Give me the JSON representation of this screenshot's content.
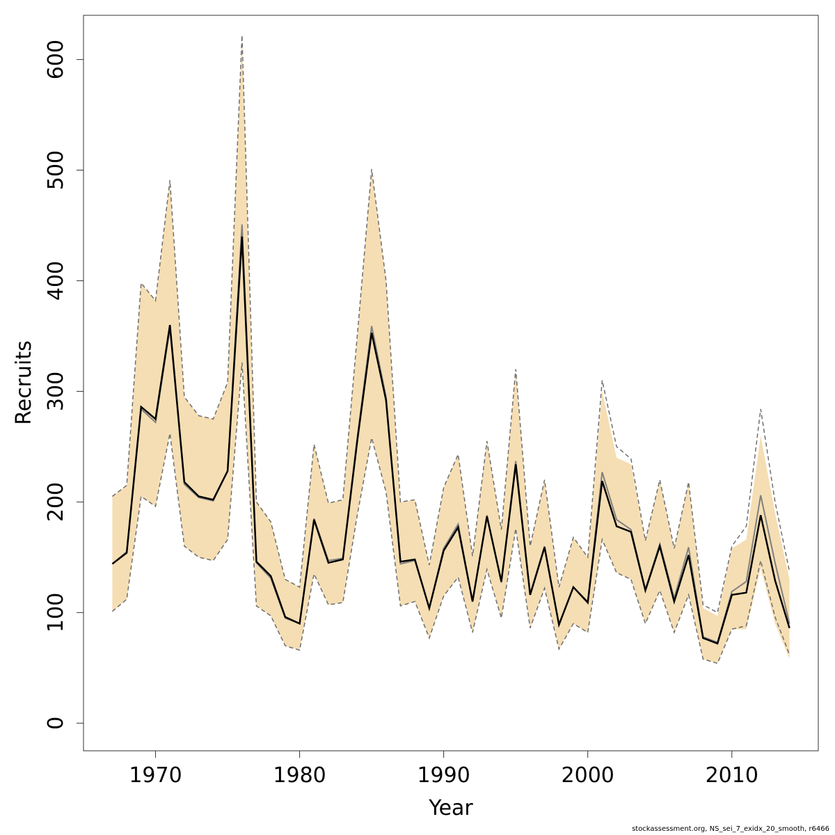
{
  "chart_data": {
    "type": "line",
    "title": "",
    "xlabel": "Year",
    "ylabel": "Recruits",
    "xlim": [
      1965,
      2016
    ],
    "ylim": [
      -25,
      640
    ],
    "x_ticks": [
      1970,
      1980,
      1990,
      2000,
      2010
    ],
    "y_ticks": [
      0,
      100,
      200,
      300,
      400,
      500,
      600
    ],
    "grid": false,
    "legend": "none",
    "colors": {
      "band": "#f5deb3",
      "estimate": "#000000",
      "previous": "#808080",
      "ci_dashed": "#6e6e6e",
      "frame": "#333333"
    },
    "years": [
      1967,
      1968,
      1969,
      1970,
      1971,
      1972,
      1973,
      1974,
      1975,
      1976,
      1977,
      1978,
      1979,
      1980,
      1981,
      1982,
      1983,
      1984,
      1985,
      1986,
      1987,
      1988,
      1989,
      1990,
      1991,
      1992,
      1993,
      1994,
      1995,
      1996,
      1997,
      1998,
      1999,
      2000,
      2001,
      2002,
      2003,
      2004,
      2005,
      2006,
      2007,
      2008,
      2009,
      2010,
      2011,
      2012,
      2013,
      2014
    ],
    "series": [
      {
        "role": "estimate",
        "values": [
          144,
          154,
          286,
          275,
          360,
          218,
          205,
          202,
          228,
          440,
          146,
          133,
          96,
          90,
          184,
          145,
          148,
          255,
          353,
          292,
          146,
          148,
          104,
          156,
          177,
          110,
          187,
          128,
          234,
          116,
          159,
          89,
          123,
          109,
          219,
          178,
          173,
          120,
          160,
          110,
          152,
          77,
          72,
          116,
          118,
          188,
          129,
          86
        ]
      },
      {
        "role": "previous",
        "values": [
          144,
          155,
          284,
          272,
          357,
          216,
          204,
          201,
          228,
          451,
          145,
          131,
          95,
          90,
          185,
          147,
          149,
          258,
          359,
          295,
          144,
          147,
          104,
          158,
          180,
          110,
          188,
          127,
          237,
          117,
          160,
          89,
          123,
          110,
          227,
          184,
          175,
          121,
          162,
          113,
          159,
          78,
          73,
          119,
          128,
          206,
          145,
          90
        ]
      },
      {
        "role": "ci_upper",
        "values": [
          205,
          215,
          398,
          382,
          491,
          295,
          278,
          275,
          308,
          622,
          200,
          182,
          130,
          123,
          252,
          199,
          202,
          350,
          501,
          400,
          200,
          202,
          143,
          213,
          243,
          151,
          255,
          175,
          320,
          160,
          220,
          123,
          168,
          150,
          310,
          250,
          239,
          165,
          220,
          158,
          218,
          107,
          100,
          160,
          178,
          284,
          200,
          137
        ]
      },
      {
        "role": "ci_lower",
        "values": [
          101,
          112,
          205,
          196,
          262,
          160,
          150,
          147,
          166,
          326,
          106,
          97,
          70,
          66,
          135,
          107,
          109,
          188,
          258,
          209,
          106,
          110,
          77,
          115,
          132,
          82,
          139,
          95,
          176,
          86,
          122,
          67,
          90,
          82,
          166,
          136,
          130,
          90,
          120,
          82,
          116,
          58,
          54,
          85,
          88,
          147,
          96,
          62
        ]
      },
      {
        "role": "band_upper",
        "values": [
          205,
          215,
          398,
          382,
          491,
          295,
          278,
          275,
          308,
          622,
          200,
          182,
          130,
          123,
          252,
          199,
          202,
          350,
          501,
          400,
          200,
          202,
          143,
          213,
          243,
          151,
          255,
          175,
          320,
          160,
          220,
          123,
          168,
          150,
          300,
          240,
          234,
          165,
          220,
          158,
          218,
          104,
          97,
          158,
          166,
          260,
          190,
          130
        ]
      },
      {
        "role": "band_lower",
        "values": [
          101,
          112,
          205,
          196,
          262,
          160,
          150,
          147,
          166,
          326,
          106,
          97,
          70,
          66,
          135,
          107,
          109,
          188,
          258,
          209,
          106,
          110,
          77,
          115,
          132,
          82,
          139,
          95,
          176,
          86,
          122,
          67,
          90,
          82,
          166,
          136,
          130,
          90,
          120,
          82,
          116,
          58,
          54,
          85,
          85,
          140,
          90,
          58
        ]
      }
    ]
  },
  "footer": {
    "note": "stockassessment.org, NS_sei_7_exidx_20_smooth, r6466"
  }
}
